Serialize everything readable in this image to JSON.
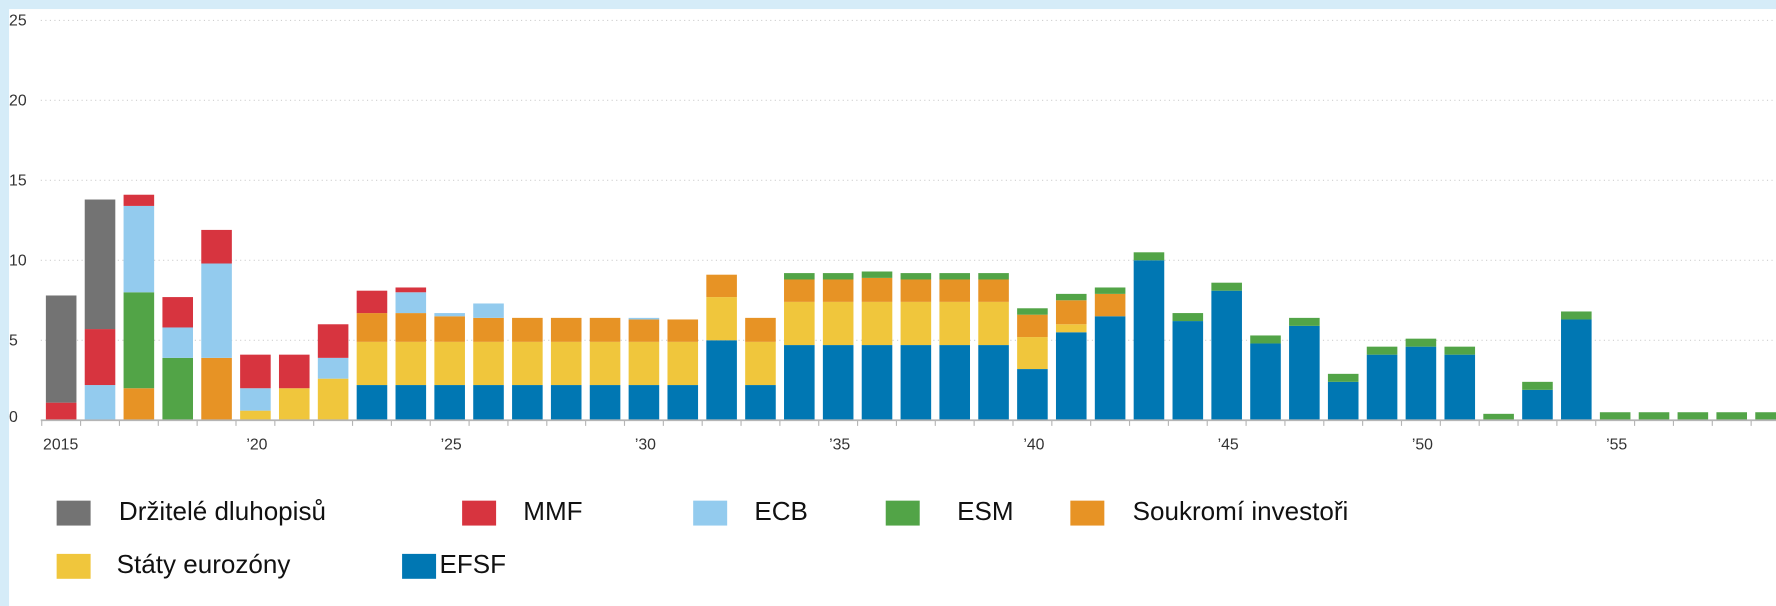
{
  "chart_data": {
    "type": "stacked_bar",
    "categories": [
      "2015",
      null,
      null,
      null,
      null,
      "’20",
      null,
      null,
      null,
      null,
      "’25",
      null,
      null,
      null,
      null,
      "’30",
      null,
      null,
      null,
      null,
      "’35",
      null,
      null,
      null,
      null,
      "’40",
      null,
      null,
      null,
      null,
      "’45",
      null,
      null,
      null,
      null,
      "’50",
      null,
      null,
      null,
      null,
      "’55",
      null,
      null,
      null,
      null
    ],
    "ylim": [
      0,
      25
    ],
    "yticks": [
      0,
      5,
      10,
      15,
      20,
      25
    ],
    "grid": true,
    "series": [
      {
        "name": "Držitelé dluhopisů",
        "color": "#737373",
        "values": [
          6.7,
          8.1,
          0,
          0,
          0,
          0,
          0,
          0,
          0,
          0,
          0,
          0,
          0,
          0,
          0,
          0,
          0,
          0,
          0,
          0,
          0,
          0,
          0,
          0,
          0,
          0,
          0,
          0,
          0,
          0,
          0,
          0,
          0,
          0,
          0,
          0,
          0,
          0,
          0,
          0,
          0,
          0,
          0,
          0,
          0
        ]
      },
      {
        "name": "MMF",
        "color": "#d7343f",
        "values": [
          1.1,
          3.5,
          0.7,
          1.9,
          2.1,
          2.1,
          2.1,
          2.1,
          1.4,
          0.3,
          0,
          0,
          0,
          0,
          0,
          0,
          0,
          0,
          0,
          0,
          0,
          0,
          0,
          0,
          0,
          0,
          0,
          0,
          0,
          0,
          0,
          0,
          0,
          0,
          0,
          0,
          0,
          0,
          0,
          0,
          0,
          0,
          0,
          0,
          0
        ]
      },
      {
        "name": "ECB",
        "color": "#93cbee",
        "values": [
          0,
          2.2,
          5.4,
          1.9,
          5.9,
          1.4,
          0,
          1.3,
          0,
          1.3,
          0.2,
          0.9,
          0,
          0,
          0,
          0.1,
          0,
          0,
          0,
          0,
          0,
          0,
          0,
          0,
          0,
          0,
          0,
          0,
          0,
          0,
          0,
          0,
          0,
          0,
          0,
          0,
          0,
          0,
          0,
          0,
          0,
          0,
          0,
          0,
          0
        ]
      },
      {
        "name": "ESM",
        "color": "#52a447",
        "values": [
          0,
          0,
          6.0,
          3.9,
          0,
          0,
          0,
          0,
          0,
          0,
          0,
          0,
          0,
          0,
          0,
          0,
          0,
          0,
          0,
          0.4,
          0.4,
          0.4,
          0.4,
          0.4,
          0.4,
          0.4,
          0.4,
          0.4,
          0.5,
          0.5,
          0.5,
          0.5,
          0.5,
          0.5,
          0.5,
          0.5,
          0.5,
          0.4,
          0.5,
          0.5,
          0.5,
          0.5,
          0.5,
          0.5,
          0.5
        ]
      },
      {
        "name": "Soukromí investoři",
        "color": "#e79325",
        "values": [
          0,
          0,
          2.0,
          0,
          3.9,
          0,
          0,
          0,
          1.8,
          1.8,
          1.6,
          1.5,
          1.5,
          1.5,
          1.5,
          1.4,
          1.4,
          1.4,
          1.5,
          1.4,
          1.4,
          1.5,
          1.4,
          1.4,
          1.4,
          1.4,
          1.5,
          1.4,
          0,
          0,
          0,
          0,
          0,
          0,
          0,
          0,
          0,
          0,
          0,
          0,
          0,
          0,
          0,
          0,
          0
        ]
      },
      {
        "name": "Státy eurozóny",
        "color": "#f0c63c",
        "values": [
          0,
          0,
          0,
          0,
          0,
          0.6,
          2.0,
          2.6,
          2.7,
          2.7,
          2.7,
          2.7,
          2.7,
          2.7,
          2.7,
          2.7,
          2.7,
          2.7,
          2.7,
          2.7,
          2.7,
          2.7,
          2.7,
          2.7,
          2.7,
          2.0,
          0.5,
          0,
          0,
          0,
          0,
          0,
          0,
          0,
          0,
          0,
          0,
          0,
          0,
          0,
          0,
          0,
          0,
          0,
          0
        ]
      },
      {
        "name": "EFSF",
        "color": "#0077b3",
        "values": [
          0,
          0,
          0,
          0,
          0,
          0,
          0,
          0,
          2.2,
          2.2,
          2.2,
          2.2,
          2.2,
          2.2,
          2.2,
          2.2,
          2.2,
          5.0,
          2.2,
          4.7,
          4.7,
          4.7,
          4.7,
          4.7,
          4.7,
          3.2,
          5.5,
          6.5,
          10.0,
          6.2,
          8.1,
          4.8,
          5.9,
          2.4,
          4.1,
          4.6,
          4.1,
          0,
          1.9,
          6.3,
          0,
          0,
          0,
          0,
          0
        ]
      }
    ]
  }
}
